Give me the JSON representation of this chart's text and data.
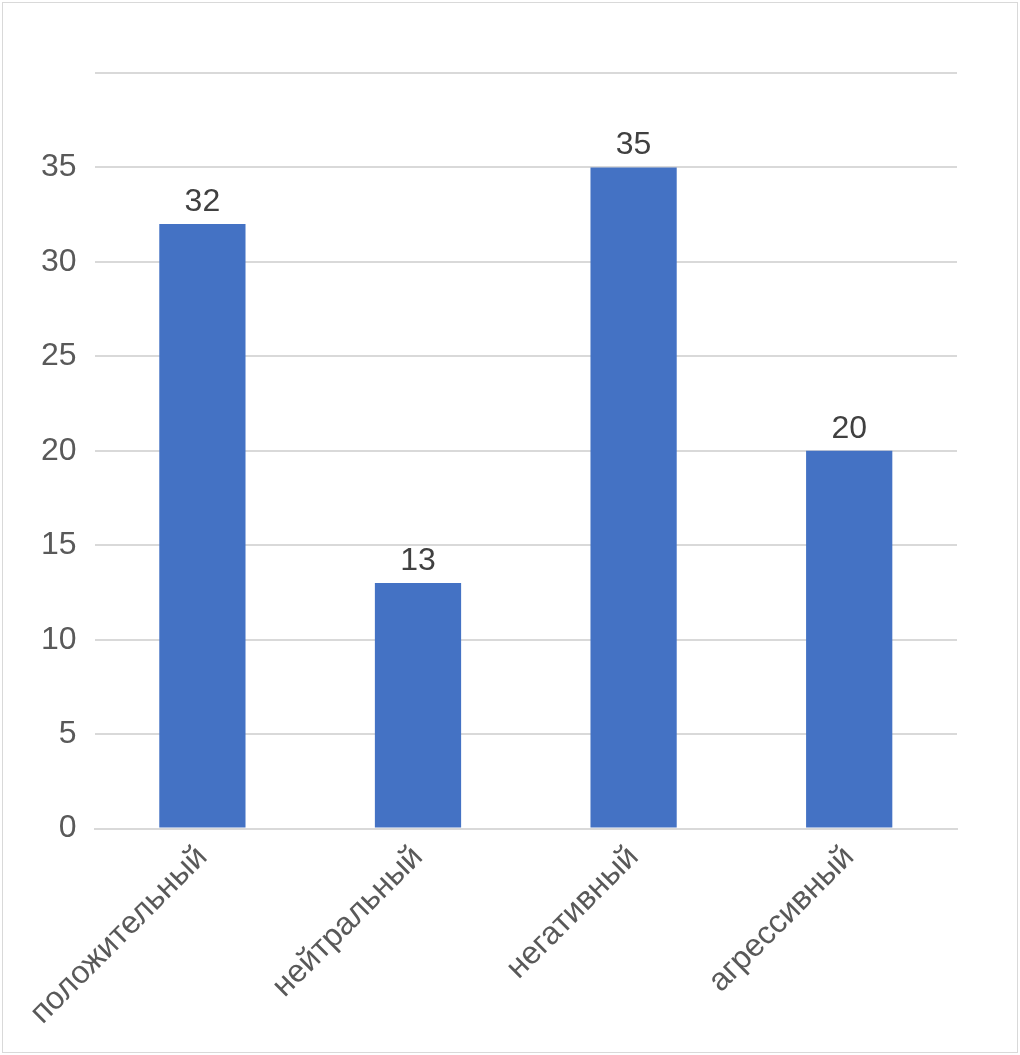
{
  "chart_data": {
    "type": "bar",
    "categories": [
      "положительный",
      "нейтральный",
      "негативный",
      "агрессивный"
    ],
    "values": [
      32,
      13,
      35,
      20
    ],
    "color": "#4472c4",
    "ylim": [
      0,
      40
    ],
    "yticks": [
      0,
      5,
      10,
      15,
      20,
      25,
      30,
      35,
      {
        "value": 40,
        "label": null
      }
    ],
    "grid": "y",
    "legend": false,
    "data_labels": true
  }
}
